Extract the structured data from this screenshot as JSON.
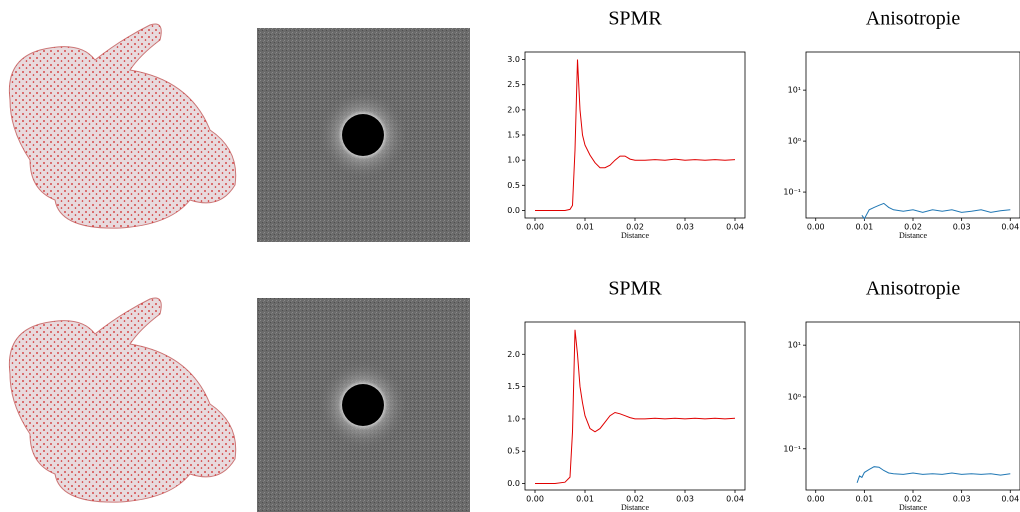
{
  "chart_data": [
    {
      "type": "line",
      "title": "SPMR",
      "x_label": "Distance",
      "x": [
        0,
        0.002,
        0.004,
        0.006,
        0.007,
        0.0075,
        0.008,
        0.0085,
        0.009,
        0.0095,
        0.01,
        0.011,
        0.012,
        0.013,
        0.014,
        0.015,
        0.016,
        0.017,
        0.018,
        0.019,
        0.02,
        0.022,
        0.024,
        0.026,
        0.028,
        0.03,
        0.032,
        0.034,
        0.036,
        0.038,
        0.04
      ],
      "series": [
        {
          "color": "#e00000",
          "values": [
            0,
            0,
            0,
            0,
            0.02,
            0.1,
            1.2,
            3.0,
            2.0,
            1.5,
            1.3,
            1.1,
            0.95,
            0.85,
            0.85,
            0.9,
            1.0,
            1.08,
            1.08,
            1.02,
            1.0,
            1.0,
            1.01,
            1.0,
            1.02,
            1.0,
            1.01,
            1.0,
            1.01,
            1.0,
            1.01
          ]
        }
      ],
      "xlim": [
        -0.002,
        0.042
      ],
      "xticks": [
        {
          "value": 0,
          "label": "0.00"
        },
        {
          "value": 0.01,
          "label": "0.01"
        },
        {
          "value": 0.02,
          "label": "0.02"
        },
        {
          "value": 0.03,
          "label": "0.03"
        },
        {
          "value": 0.04,
          "label": "0.04"
        }
      ],
      "ylim": [
        -0.15,
        3.15
      ],
      "yticks": [
        {
          "value": 0,
          "label": "0.0"
        },
        {
          "value": 0.5,
          "label": "0.5"
        },
        {
          "value": 1,
          "label": "1.0"
        },
        {
          "value": 1.5,
          "label": "1.5"
        },
        {
          "value": 2,
          "label": "2.0"
        },
        {
          "value": 2.5,
          "label": "2.5"
        },
        {
          "value": 3,
          "label": "3.0"
        }
      ],
      "log_y": false
    },
    {
      "type": "line",
      "title": "Anisotropie",
      "x_label": "Distance",
      "x": [
        0.0095,
        0.01,
        0.011,
        0.012,
        0.013,
        0.014,
        0.015,
        0.016,
        0.018,
        0.02,
        0.022,
        0.024,
        0.026,
        0.028,
        0.03,
        0.032,
        0.034,
        0.036,
        0.038,
        0.04
      ],
      "series": [
        {
          "color": "#1f77b4",
          "values": [
            0.035,
            0.03,
            0.045,
            0.05,
            0.055,
            0.06,
            0.05,
            0.045,
            0.042,
            0.045,
            0.04,
            0.045,
            0.042,
            0.045,
            0.04,
            0.042,
            0.045,
            0.04,
            0.043,
            0.045
          ]
        }
      ],
      "xlim": [
        -0.002,
        0.042
      ],
      "xticks": [
        {
          "value": 0,
          "label": "0.00"
        },
        {
          "value": 0.01,
          "label": "0.01"
        },
        {
          "value": 0.02,
          "label": "0.02"
        },
        {
          "value": 0.03,
          "label": "0.03"
        },
        {
          "value": 0.04,
          "label": "0.04"
        }
      ],
      "ylim": [
        0.031,
        56
      ],
      "yticks": [
        {
          "value": 0.1,
          "label": "10⁻¹"
        },
        {
          "value": 1,
          "label": "10⁰"
        },
        {
          "value": 10,
          "label": "10¹"
        }
      ],
      "log_y": true
    },
    {
      "type": "line",
      "title": "SPMR",
      "x_label": "Distance",
      "x": [
        0,
        0.002,
        0.004,
        0.006,
        0.007,
        0.0075,
        0.008,
        0.0085,
        0.009,
        0.0095,
        0.01,
        0.011,
        0.012,
        0.013,
        0.014,
        0.015,
        0.016,
        0.017,
        0.018,
        0.019,
        0.02,
        0.022,
        0.024,
        0.026,
        0.028,
        0.03,
        0.032,
        0.034,
        0.036,
        0.038,
        0.04
      ],
      "series": [
        {
          "color": "#e00000",
          "values": [
            0,
            0,
            0,
            0.02,
            0.1,
            0.8,
            2.38,
            2.0,
            1.5,
            1.25,
            1.05,
            0.85,
            0.8,
            0.85,
            0.95,
            1.05,
            1.1,
            1.08,
            1.05,
            1.02,
            1.0,
            1.0,
            1.01,
            1.0,
            1.01,
            1.0,
            1.01,
            1.0,
            1.01,
            1.0,
            1.01
          ]
        }
      ],
      "xlim": [
        -0.002,
        0.042
      ],
      "xticks": [
        {
          "value": 0,
          "label": "0.00"
        },
        {
          "value": 0.01,
          "label": "0.01"
        },
        {
          "value": 0.02,
          "label": "0.02"
        },
        {
          "value": 0.03,
          "label": "0.03"
        },
        {
          "value": 0.04,
          "label": "0.04"
        }
      ],
      "ylim": [
        -0.1,
        2.5
      ],
      "yticks": [
        {
          "value": 0,
          "label": "0.0"
        },
        {
          "value": 0.5,
          "label": "0.5"
        },
        {
          "value": 1,
          "label": "1.0"
        },
        {
          "value": 1.5,
          "label": "1.5"
        },
        {
          "value": 2,
          "label": "2.0"
        }
      ],
      "log_y": false
    },
    {
      "type": "line",
      "title": "Anisotropie",
      "x_label": "Distance",
      "x": [
        0.0085,
        0.009,
        0.0095,
        0.01,
        0.011,
        0.012,
        0.013,
        0.014,
        0.015,
        0.016,
        0.018,
        0.02,
        0.022,
        0.024,
        0.026,
        0.028,
        0.03,
        0.032,
        0.034,
        0.036,
        0.038,
        0.04
      ],
      "series": [
        {
          "color": "#1f77b4",
          "values": [
            0.022,
            0.03,
            0.028,
            0.035,
            0.04,
            0.045,
            0.044,
            0.038,
            0.034,
            0.033,
            0.032,
            0.034,
            0.032,
            0.033,
            0.032,
            0.034,
            0.032,
            0.033,
            0.032,
            0.033,
            0.031,
            0.033
          ]
        }
      ],
      "xlim": [
        -0.002,
        0.042
      ],
      "xticks": [
        {
          "value": 0,
          "label": "0.00"
        },
        {
          "value": 0.01,
          "label": "0.01"
        },
        {
          "value": 0.02,
          "label": "0.02"
        },
        {
          "value": 0.03,
          "label": "0.03"
        },
        {
          "value": 0.04,
          "label": "0.04"
        }
      ],
      "ylim": [
        0.016,
        28
      ],
      "yticks": [
        {
          "value": 0.1,
          "label": "10⁻¹"
        },
        {
          "value": 1,
          "label": "10⁰"
        },
        {
          "value": 10,
          "label": "10¹"
        }
      ],
      "log_y": true
    }
  ]
}
